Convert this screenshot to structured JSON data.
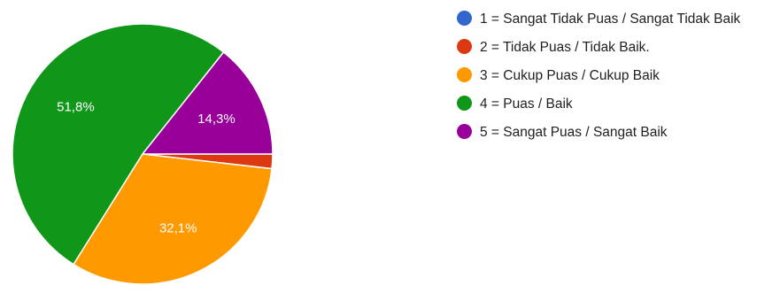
{
  "chart_data": {
    "type": "pie",
    "title": "",
    "slices": [
      {
        "label": "1 = Sangat Tidak Puas / Sangat Tidak Baik",
        "value": 0,
        "value_label": "",
        "color": "#3366cc"
      },
      {
        "label": "2 = Tidak Puas / Tidak Baik.",
        "value": 1.8,
        "value_label": "",
        "color": "#dc3912"
      },
      {
        "label": "3 = Cukup Puas / Cukup Baik",
        "value": 32.1,
        "value_label": "32,1%",
        "color": "#ff9900"
      },
      {
        "label": "4 = Puas / Baik",
        "value": 51.8,
        "value_label": "51,8%",
        "color": "#109618"
      },
      {
        "label": "5 = Sangat Puas / Sangat Baik",
        "value": 14.3,
        "value_label": "14,3%",
        "color": "#990099"
      }
    ],
    "legend_position": "right"
  }
}
